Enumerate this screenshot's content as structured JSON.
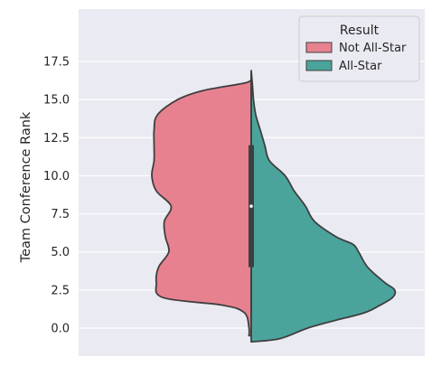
{
  "chart_data": {
    "type": "violin",
    "title": "",
    "xlabel": "",
    "ylabel": "Team Conference Rank",
    "ylim": [
      -1.0,
      17.5
    ],
    "yticks": [
      0.0,
      2.5,
      5.0,
      7.5,
      10.0,
      12.5,
      15.0,
      17.5
    ],
    "ytick_labels": [
      "0.0",
      "2.5",
      "5.0",
      "7.5",
      "10.0",
      "12.5",
      "15.0",
      "17.5"
    ],
    "grid": true,
    "split": true,
    "legend": {
      "title": "Result",
      "placement": "top-right",
      "entries": [
        {
          "label": "Not All-Star",
          "color": "#e8818f"
        },
        {
          "label": "All-Star",
          "color": "#4aa49b"
        }
      ]
    },
    "series": [
      {
        "name": "Not All-Star",
        "side": "left",
        "color": "#e8818f",
        "density_profile": [
          [
            -0.5,
            0.02
          ],
          [
            0.0,
            0.02
          ],
          [
            1.0,
            0.06
          ],
          [
            1.5,
            0.25
          ],
          [
            2.0,
            0.78
          ],
          [
            3.0,
            0.84
          ],
          [
            4.0,
            0.82
          ],
          [
            5.0,
            0.73
          ],
          [
            6.0,
            0.76
          ],
          [
            7.0,
            0.77
          ],
          [
            8.0,
            0.71
          ],
          [
            9.0,
            0.84
          ],
          [
            10.0,
            0.88
          ],
          [
            11.0,
            0.86
          ],
          [
            12.0,
            0.86
          ],
          [
            13.0,
            0.86
          ],
          [
            14.0,
            0.83
          ],
          [
            15.0,
            0.65
          ],
          [
            15.6,
            0.42
          ],
          [
            16.1,
            0.05
          ],
          [
            16.4,
            0.0
          ]
        ]
      },
      {
        "name": "All-Star",
        "side": "right",
        "color": "#4aa49b",
        "density_profile": [
          [
            -0.9,
            0.0
          ],
          [
            -0.7,
            0.25
          ],
          [
            0.0,
            0.5
          ],
          [
            0.5,
            0.74
          ],
          [
            1.0,
            1.0
          ],
          [
            1.5,
            1.14
          ],
          [
            2.0,
            1.25
          ],
          [
            2.5,
            1.27
          ],
          [
            3.0,
            1.18
          ],
          [
            4.0,
            1.03
          ],
          [
            5.0,
            0.95
          ],
          [
            5.5,
            0.9
          ],
          [
            6.0,
            0.75
          ],
          [
            7.0,
            0.56
          ],
          [
            8.0,
            0.48
          ],
          [
            9.0,
            0.38
          ],
          [
            10.0,
            0.3
          ],
          [
            11.0,
            0.16
          ],
          [
            12.0,
            0.12
          ],
          [
            13.0,
            0.08
          ],
          [
            14.0,
            0.04
          ],
          [
            15.0,
            0.02
          ],
          [
            16.0,
            0.01
          ],
          [
            16.9,
            0.0
          ]
        ]
      }
    ],
    "box": {
      "q1": 4.0,
      "q3": 12.0,
      "median": 8.0,
      "whisker_low": 1.0,
      "whisker_high": 16.9
    }
  }
}
